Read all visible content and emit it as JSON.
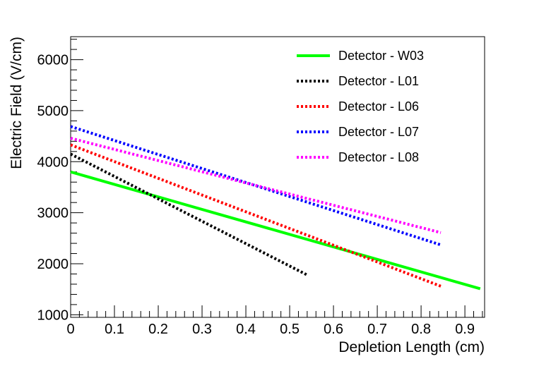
{
  "chart_data": {
    "type": "line",
    "title": "",
    "xlabel": "Depletion Length (cm)",
    "ylabel": "Electric Field (V/cm)",
    "xlim": [
      0,
      0.945
    ],
    "ylim": [
      950,
      6450
    ],
    "x_ticks": [
      0,
      0.1,
      0.2,
      0.3,
      0.4,
      0.5,
      0.6,
      0.7,
      0.8,
      0.9
    ],
    "x_tick_labels": [
      "0",
      "0.1",
      "0.2",
      "0.3",
      "0.4",
      "0.5",
      "0.6",
      "0.7",
      "0.8",
      "0.9"
    ],
    "y_ticks": [
      1000,
      2000,
      3000,
      4000,
      5000,
      6000
    ],
    "y_tick_labels": [
      "1000",
      "2000",
      "3000",
      "4000",
      "5000",
      "6000"
    ],
    "grid": false,
    "legend_position": "top-right",
    "series": [
      {
        "name": "Detector - W03",
        "color": "#00ff00",
        "style": "solid",
        "x": [
          0,
          0.935
        ],
        "values": [
          3800,
          1510
        ]
      },
      {
        "name": "Detector - L01",
        "color": "#000000",
        "style": "dotted",
        "x": [
          0,
          0.54
        ],
        "values": [
          4150,
          1780
        ]
      },
      {
        "name": "Detector - L06",
        "color": "#ff0000",
        "style": "dotted",
        "x": [
          0,
          0.845
        ],
        "values": [
          4330,
          1560
        ]
      },
      {
        "name": "Detector - L07",
        "color": "#0000ff",
        "style": "dotted",
        "x": [
          0,
          0.845
        ],
        "values": [
          4690,
          2370
        ]
      },
      {
        "name": "Detector - L08",
        "color": "#ff00ff",
        "style": "dotted",
        "x": [
          0,
          0.845
        ],
        "values": [
          4460,
          2610
        ]
      }
    ]
  }
}
